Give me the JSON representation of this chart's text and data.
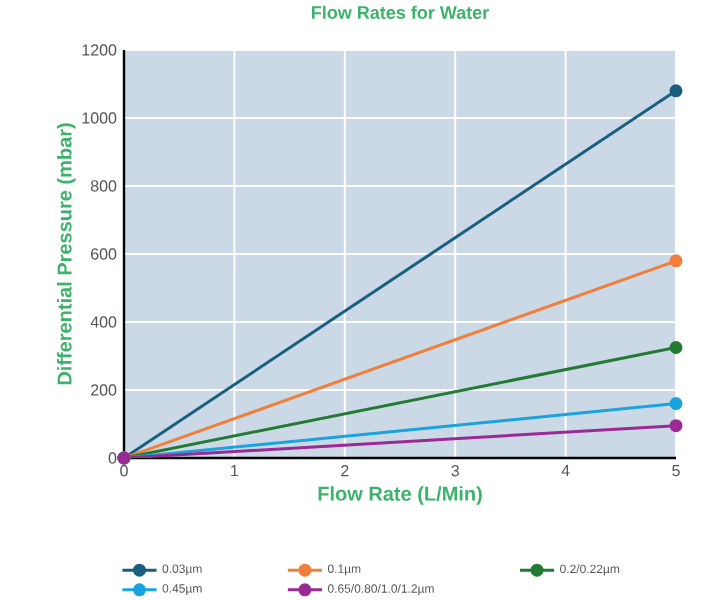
{
  "chart_data": {
    "type": "line",
    "title": "Flow Rates for Water",
    "xlabel": "Flow Rate (L/Min)",
    "ylabel": "Differential Pressure (mbar)",
    "x": [
      0,
      5
    ],
    "series": [
      {
        "name": "0.03µm",
        "color": "#1a5e80",
        "values": [
          0,
          1080
        ]
      },
      {
        "name": "0.1µm",
        "color": "#f07f3c",
        "values": [
          0,
          580
        ]
      },
      {
        "name": "0.2/0.22µm",
        "color": "#237a33",
        "values": [
          0,
          325
        ]
      },
      {
        "name": "0.45µm",
        "color": "#1ba3de",
        "values": [
          0,
          160
        ]
      },
      {
        "name": "0.65/0.80/1.0/1.2µm",
        "color": "#9b2a96",
        "values": [
          0,
          95
        ]
      }
    ],
    "xlim": [
      0,
      5
    ],
    "ylim": [
      0,
      1200
    ],
    "xticks": [
      0,
      1,
      2,
      3,
      4,
      5
    ],
    "yticks": [
      0,
      200,
      400,
      600,
      800,
      1000,
      1200
    ],
    "grid": true,
    "legend": "bottom",
    "marker": "circle",
    "line_style": "solid"
  }
}
